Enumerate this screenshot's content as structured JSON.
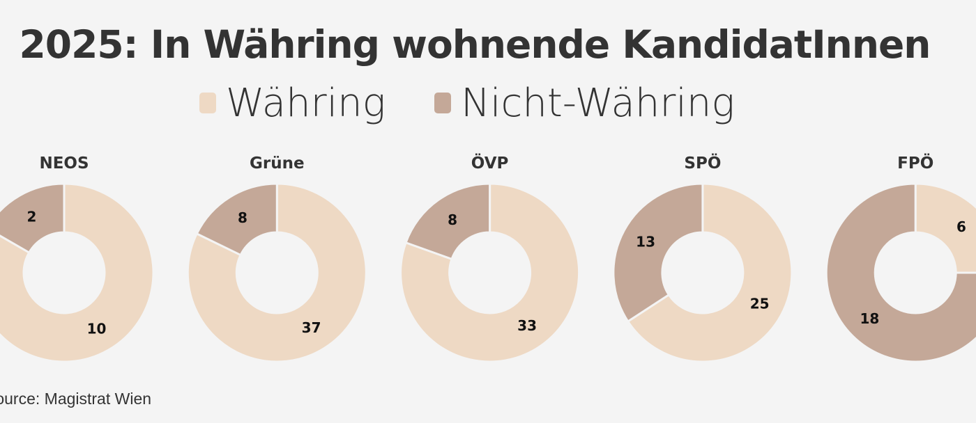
{
  "chart_data": {
    "type": "pie",
    "title": "2025: In Währing wohnende KandidatInnen",
    "legend": [
      {
        "name": "Währing",
        "color": "#EED9C4"
      },
      {
        "name": "Nicht-Währing",
        "color": "#C4A898"
      }
    ],
    "legend_position": "top",
    "charts": [
      {
        "label": "NEOS",
        "values": [
          10,
          2
        ]
      },
      {
        "label": "Grüne",
        "values": [
          37,
          8
        ]
      },
      {
        "label": "ÖVP",
        "values": [
          33,
          8
        ]
      },
      {
        "label": "SPÖ",
        "values": [
          25,
          13
        ]
      },
      {
        "label": "FPÖ",
        "values": [
          6,
          18
        ]
      }
    ]
  },
  "source": "Source: Magistrat Wien"
}
